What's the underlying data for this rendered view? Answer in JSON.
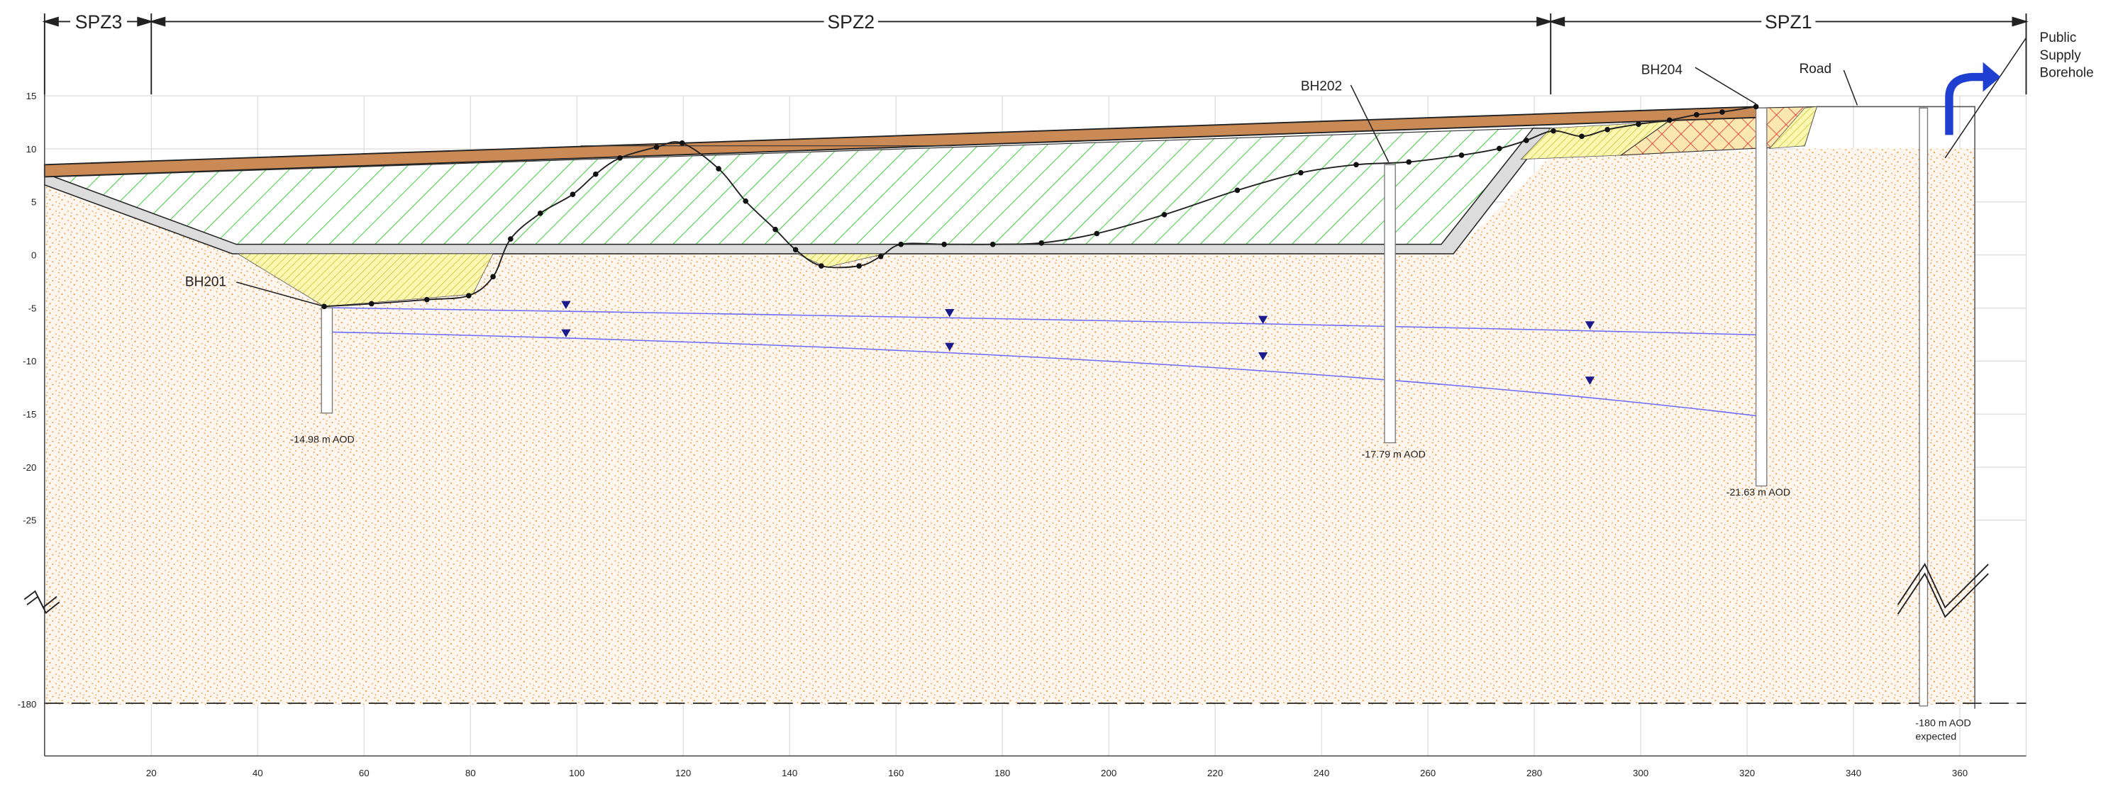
{
  "zones": [
    "SPZ3",
    "SPZ2",
    "SPZ1"
  ],
  "y_axis": {
    "ticks": [
      "15",
      "10",
      "5",
      "0",
      "-5",
      "-10",
      "-15",
      "-20",
      "-25"
    ],
    "break_tick": "-180"
  },
  "x_axis": {
    "ticks": [
      "20",
      "40",
      "60",
      "80",
      "100",
      "120",
      "140",
      "160",
      "180",
      "200",
      "220",
      "240",
      "260",
      "280",
      "300",
      "320",
      "340",
      "360"
    ]
  },
  "boreholes": [
    {
      "label": "BH201",
      "depth": "-14.98 m AOD"
    },
    {
      "label": "BH202",
      "depth": "-17.79 m AOD"
    },
    {
      "label": "BH204",
      "depth": "-21.63 m AOD"
    }
  ],
  "public_supply": {
    "lines": [
      "Public",
      "Supply",
      "Borehole"
    ],
    "depth": "-180 m AOD",
    "note": "expected"
  },
  "road": "Road"
}
